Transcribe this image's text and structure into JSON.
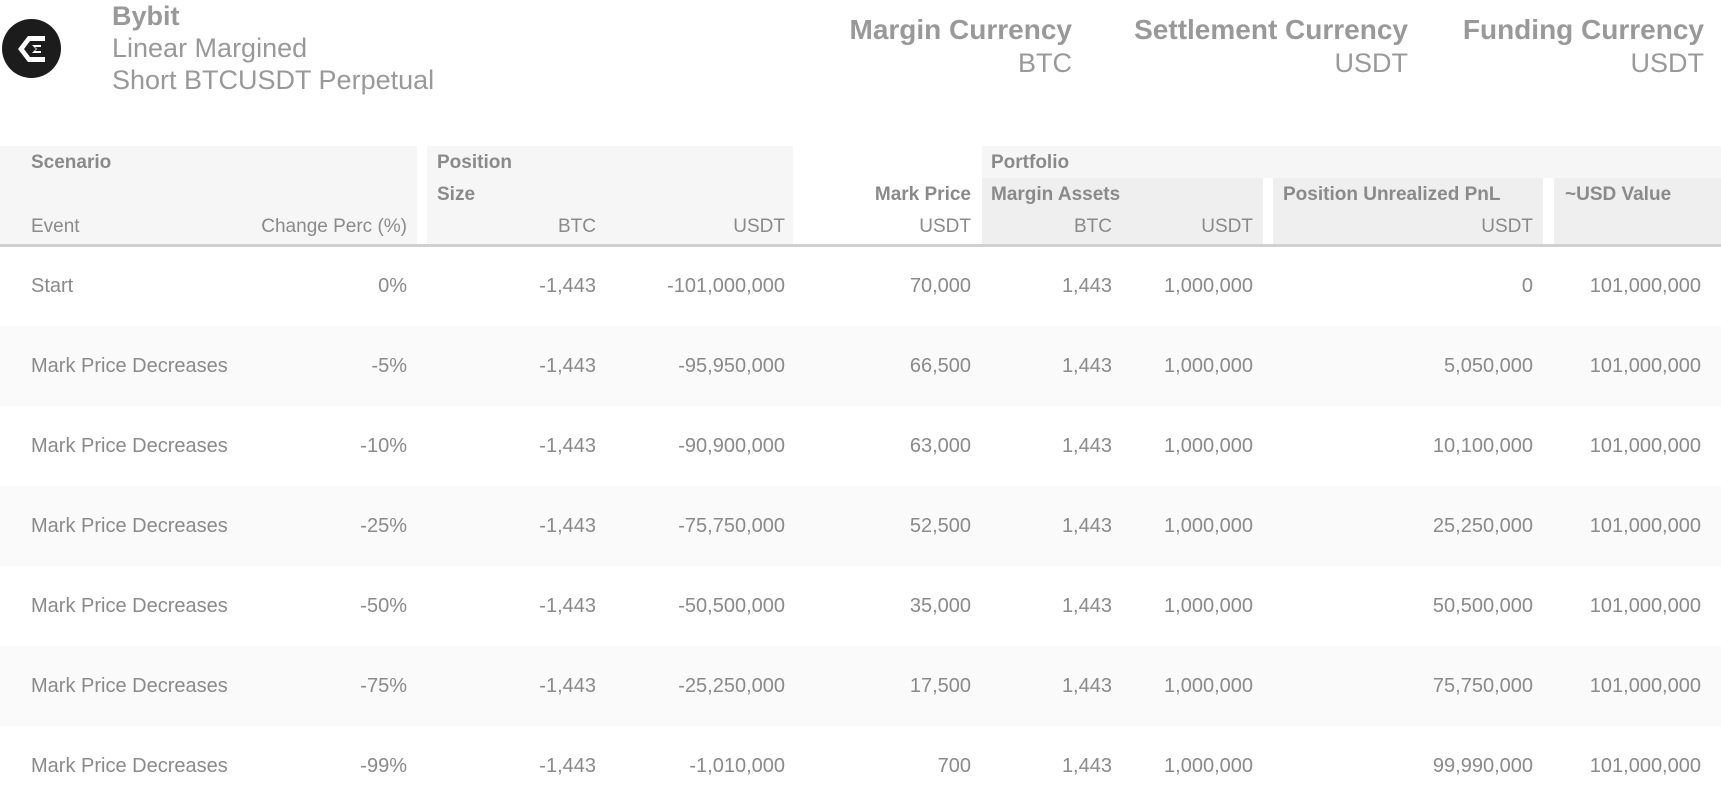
{
  "header": {
    "brand": "Bybit",
    "subtitle1": "Linear Margined",
    "subtitle2": "Short BTCUSDT Perpetual"
  },
  "currencies": {
    "margin": {
      "label": "Margin Currency",
      "value": "BTC"
    },
    "settlement": {
      "label": "Settlement Currency",
      "value": "USDT"
    },
    "funding": {
      "label": "Funding Currency",
      "value": "USDT"
    }
  },
  "table": {
    "group_scenario": "Scenario",
    "group_position": "Position",
    "group_portfolio": "Portfolio",
    "position_size": "Size",
    "mark_price": "Mark Price",
    "margin_assets": "Margin Assets",
    "unrealized_pnl": "Position Unrealized PnL",
    "usd_value": "~USD Value",
    "col_event": "Event",
    "col_change": "Change Perc (%)",
    "unit_btc": "BTC",
    "unit_usdt": "USDT",
    "rows": [
      {
        "event": "Start",
        "change": "0%",
        "size_btc": "-1,443",
        "size_usdt": "-101,000,000",
        "mark": "70,000",
        "ma_btc": "1,443",
        "ma_usdt": "1,000,000",
        "pnl": "0",
        "usd": "101,000,000"
      },
      {
        "event": "Mark Price Decreases",
        "change": "-5%",
        "size_btc": "-1,443",
        "size_usdt": "-95,950,000",
        "mark": "66,500",
        "ma_btc": "1,443",
        "ma_usdt": "1,000,000",
        "pnl": "5,050,000",
        "usd": "101,000,000"
      },
      {
        "event": "Mark Price Decreases",
        "change": "-10%",
        "size_btc": "-1,443",
        "size_usdt": "-90,900,000",
        "mark": "63,000",
        "ma_btc": "1,443",
        "ma_usdt": "1,000,000",
        "pnl": "10,100,000",
        "usd": "101,000,000"
      },
      {
        "event": "Mark Price Decreases",
        "change": "-25%",
        "size_btc": "-1,443",
        "size_usdt": "-75,750,000",
        "mark": "52,500",
        "ma_btc": "1,443",
        "ma_usdt": "1,000,000",
        "pnl": "25,250,000",
        "usd": "101,000,000"
      },
      {
        "event": "Mark Price Decreases",
        "change": "-50%",
        "size_btc": "-1,443",
        "size_usdt": "-50,500,000",
        "mark": "35,000",
        "ma_btc": "1,443",
        "ma_usdt": "1,000,000",
        "pnl": "50,500,000",
        "usd": "101,000,000"
      },
      {
        "event": "Mark Price Decreases",
        "change": "-75%",
        "size_btc": "-1,443",
        "size_usdt": "-25,250,000",
        "mark": "17,500",
        "ma_btc": "1,443",
        "ma_usdt": "1,000,000",
        "pnl": "75,750,000",
        "usd": "101,000,000"
      },
      {
        "event": "Mark Price Decreases",
        "change": "-99%",
        "size_btc": "-1,443",
        "size_usdt": "-1,010,000",
        "mark": "700",
        "ma_btc": "1,443",
        "ma_usdt": "1,000,000",
        "pnl": "99,990,000",
        "usd": "101,000,000"
      }
    ]
  }
}
